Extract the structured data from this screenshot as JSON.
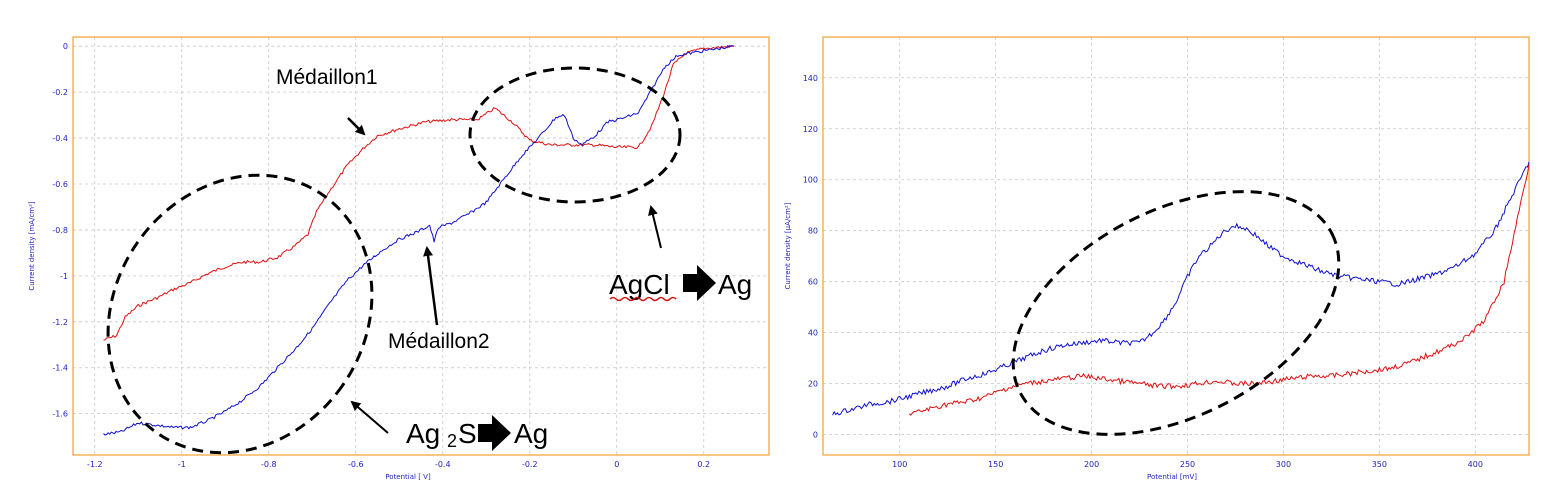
{
  "colors": {
    "frame": "#f0a030",
    "grid": "#c8c8c8",
    "axis_text": "#1f1fc0",
    "red": "#e01010",
    "blue": "#1010d0"
  },
  "chart_data": [
    {
      "type": "line",
      "xlabel": "Potential [ V]",
      "ylabel": "Current density [mA/cm²]",
      "xlim": [
        -1.25,
        0.35
      ],
      "ylim": [
        -1.78,
        0.04
      ],
      "xticks": [
        -1.2,
        -1,
        -0.8,
        -0.6,
        -0.4,
        -0.2,
        0,
        0.2
      ],
      "yticks": [
        0,
        -0.2,
        -0.4,
        -0.6,
        -0.8,
        -1,
        -1.2,
        -1.4,
        -1.6
      ],
      "grid": true,
      "series": [
        {
          "color": "red",
          "points": [
            [
              -1.18,
              -1.28
            ],
            [
              -1.15,
              -1.26
            ],
            [
              -1.13,
              -1.18
            ],
            [
              -1.1,
              -1.13
            ],
            [
              -1.05,
              -1.09
            ],
            [
              -1.02,
              -1.06
            ],
            [
              -0.98,
              -1.03
            ],
            [
              -0.94,
              -0.99
            ],
            [
              -0.9,
              -0.96
            ],
            [
              -0.86,
              -0.94
            ],
            [
              -0.82,
              -0.94
            ],
            [
              -0.78,
              -0.92
            ],
            [
              -0.74,
              -0.87
            ],
            [
              -0.71,
              -0.82
            ],
            [
              -0.69,
              -0.72
            ],
            [
              -0.66,
              -0.63
            ],
            [
              -0.62,
              -0.52
            ],
            [
              -0.58,
              -0.44
            ],
            [
              -0.55,
              -0.39
            ],
            [
              -0.5,
              -0.36
            ],
            [
              -0.44,
              -0.33
            ],
            [
              -0.38,
              -0.32
            ],
            [
              -0.32,
              -0.32
            ],
            [
              -0.28,
              -0.27
            ],
            [
              -0.24,
              -0.33
            ],
            [
              -0.2,
              -0.41
            ],
            [
              -0.15,
              -0.43
            ],
            [
              -0.1,
              -0.43
            ],
            [
              -0.05,
              -0.43
            ],
            [
              0.0,
              -0.44
            ],
            [
              0.05,
              -0.44
            ],
            [
              0.08,
              -0.35
            ],
            [
              0.11,
              -0.2
            ],
            [
              0.13,
              -0.08
            ],
            [
              0.16,
              -0.03
            ],
            [
              0.2,
              -0.01
            ],
            [
              0.27,
              0.0
            ]
          ]
        },
        {
          "color": "blue",
          "points": [
            [
              -1.18,
              -1.69
            ],
            [
              -1.14,
              -1.68
            ],
            [
              -1.1,
              -1.64
            ],
            [
              -1.06,
              -1.65
            ],
            [
              -1.02,
              -1.66
            ],
            [
              -0.98,
              -1.66
            ],
            [
              -0.94,
              -1.63
            ],
            [
              -0.9,
              -1.59
            ],
            [
              -0.86,
              -1.54
            ],
            [
              -0.82,
              -1.48
            ],
            [
              -0.78,
              -1.4
            ],
            [
              -0.74,
              -1.32
            ],
            [
              -0.7,
              -1.23
            ],
            [
              -0.66,
              -1.12
            ],
            [
              -0.62,
              -1.02
            ],
            [
              -0.58,
              -0.95
            ],
            [
              -0.54,
              -0.89
            ],
            [
              -0.5,
              -0.84
            ],
            [
              -0.46,
              -0.81
            ],
            [
              -0.44,
              -0.79
            ],
            [
              -0.43,
              -0.78
            ],
            [
              -0.42,
              -0.85
            ],
            [
              -0.41,
              -0.79
            ],
            [
              -0.38,
              -0.77
            ],
            [
              -0.34,
              -0.73
            ],
            [
              -0.3,
              -0.68
            ],
            [
              -0.26,
              -0.58
            ],
            [
              -0.22,
              -0.48
            ],
            [
              -0.18,
              -0.4
            ],
            [
              -0.14,
              -0.31
            ],
            [
              -0.12,
              -0.3
            ],
            [
              -0.1,
              -0.4
            ],
            [
              -0.08,
              -0.43
            ],
            [
              -0.05,
              -0.39
            ],
            [
              -0.02,
              -0.33
            ],
            [
              0.02,
              -0.31
            ],
            [
              0.05,
              -0.29
            ],
            [
              0.08,
              -0.19
            ],
            [
              0.11,
              -0.09
            ],
            [
              0.14,
              -0.04
            ],
            [
              0.2,
              -0.02
            ],
            [
              0.27,
              0.0
            ]
          ]
        }
      ]
    },
    {
      "type": "line",
      "xlabel": "Potential [mV]",
      "ylabel": "Current density [µA/cm²]",
      "xlim": [
        60,
        428
      ],
      "ylim": [
        -8,
        156
      ],
      "xticks": [
        100,
        150,
        200,
        250,
        300,
        350,
        400
      ],
      "yticks": [
        0,
        20,
        40,
        60,
        80,
        100,
        120,
        140
      ],
      "grid": true,
      "series": [
        {
          "color": "blue",
          "points": [
            [
              65,
              8
            ],
            [
              75,
              10
            ],
            [
              85,
              12
            ],
            [
              95,
              13
            ],
            [
              105,
              15
            ],
            [
              115,
              17
            ],
            [
              125,
              19
            ],
            [
              135,
              22
            ],
            [
              145,
              24
            ],
            [
              155,
              27
            ],
            [
              165,
              30
            ],
            [
              175,
              33
            ],
            [
              185,
              35
            ],
            [
              195,
              36
            ],
            [
              205,
              37
            ],
            [
              215,
              36
            ],
            [
              225,
              36
            ],
            [
              232,
              40
            ],
            [
              238,
              45
            ],
            [
              244,
              52
            ],
            [
              250,
              62
            ],
            [
              256,
              70
            ],
            [
              262,
              74
            ],
            [
              268,
              79
            ],
            [
              274,
              82
            ],
            [
              280,
              81
            ],
            [
              286,
              78
            ],
            [
              292,
              74
            ],
            [
              300,
              70
            ],
            [
              310,
              67
            ],
            [
              320,
              64
            ],
            [
              330,
              62
            ],
            [
              340,
              61
            ],
            [
              350,
              60
            ],
            [
              360,
              59
            ],
            [
              370,
              61
            ],
            [
              380,
              63
            ],
            [
              390,
              66
            ],
            [
              400,
              71
            ],
            [
              410,
              80
            ],
            [
              420,
              95
            ],
            [
              428,
              107
            ]
          ]
        },
        {
          "color": "red",
          "points": [
            [
              105,
              8
            ],
            [
              115,
              10
            ],
            [
              125,
              12
            ],
            [
              135,
              13
            ],
            [
              145,
              15
            ],
            [
              155,
              18
            ],
            [
              165,
              20
            ],
            [
              175,
              21
            ],
            [
              185,
              22
            ],
            [
              195,
              23
            ],
            [
              205,
              22
            ],
            [
              215,
              21
            ],
            [
              225,
              20
            ],
            [
              235,
              19
            ],
            [
              245,
              19
            ],
            [
              255,
              20
            ],
            [
              265,
              21
            ],
            [
              275,
              20
            ],
            [
              285,
              20
            ],
            [
              295,
              21
            ],
            [
              305,
              22
            ],
            [
              315,
              23
            ],
            [
              325,
              23
            ],
            [
              335,
              24
            ],
            [
              345,
              25
            ],
            [
              355,
              26
            ],
            [
              365,
              28
            ],
            [
              375,
              31
            ],
            [
              385,
              34
            ],
            [
              395,
              38
            ],
            [
              405,
              45
            ],
            [
              415,
              60
            ],
            [
              422,
              85
            ],
            [
              428,
              106
            ]
          ]
        }
      ]
    }
  ],
  "annotations": {
    "medaillon1": "Médaillon1",
    "medaillon2": "Médaillon2",
    "agcl_left": "AgCl",
    "agcl_right": "Ag",
    "ag2s_left": "Ag",
    "ag2s_sub": "2",
    "ag2s_mid": "S",
    "ag2s_right": "Ag"
  }
}
